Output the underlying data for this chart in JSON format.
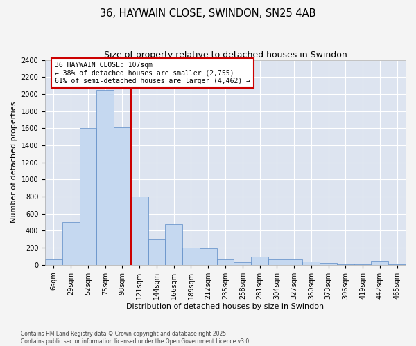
{
  "title": "36, HAYWAIN CLOSE, SWINDON, SN25 4AB",
  "subtitle": "Size of property relative to detached houses in Swindon",
  "xlabel": "Distribution of detached houses by size in Swindon",
  "ylabel": "Number of detached properties",
  "categories": [
    "6sqm",
    "29sqm",
    "52sqm",
    "75sqm",
    "98sqm",
    "121sqm",
    "144sqm",
    "166sqm",
    "189sqm",
    "212sqm",
    "235sqm",
    "258sqm",
    "281sqm",
    "304sqm",
    "327sqm",
    "350sqm",
    "373sqm",
    "396sqm",
    "419sqm",
    "442sqm",
    "465sqm"
  ],
  "values": [
    75,
    500,
    1600,
    2050,
    1610,
    800,
    300,
    480,
    200,
    195,
    70,
    30,
    100,
    70,
    70,
    40,
    20,
    5,
    5,
    45,
    5
  ],
  "bar_color": "#c5d8f0",
  "bar_edge_color": "#5b8ac5",
  "ylim": [
    0,
    2400
  ],
  "yticks": [
    0,
    200,
    400,
    600,
    800,
    1000,
    1200,
    1400,
    1600,
    1800,
    2000,
    2200,
    2400
  ],
  "vline_color": "#cc0000",
  "annotation_text_line1": "36 HAYWAIN CLOSE: 107sqm",
  "annotation_text_line2": "← 38% of detached houses are smaller (2,755)",
  "annotation_text_line3": "61% of semi-detached houses are larger (4,462) →",
  "annotation_color": "#cc0000",
  "bg_color": "#dde4f0",
  "grid_color": "#ffffff",
  "footer_line1": "Contains HM Land Registry data © Crown copyright and database right 2025.",
  "footer_line2": "Contains public sector information licensed under the Open Government Licence v3.0.",
  "title_fontsize": 10.5,
  "subtitle_fontsize": 9,
  "axis_label_fontsize": 8,
  "tick_fontsize": 7,
  "fig_bg_color": "#f4f4f4"
}
